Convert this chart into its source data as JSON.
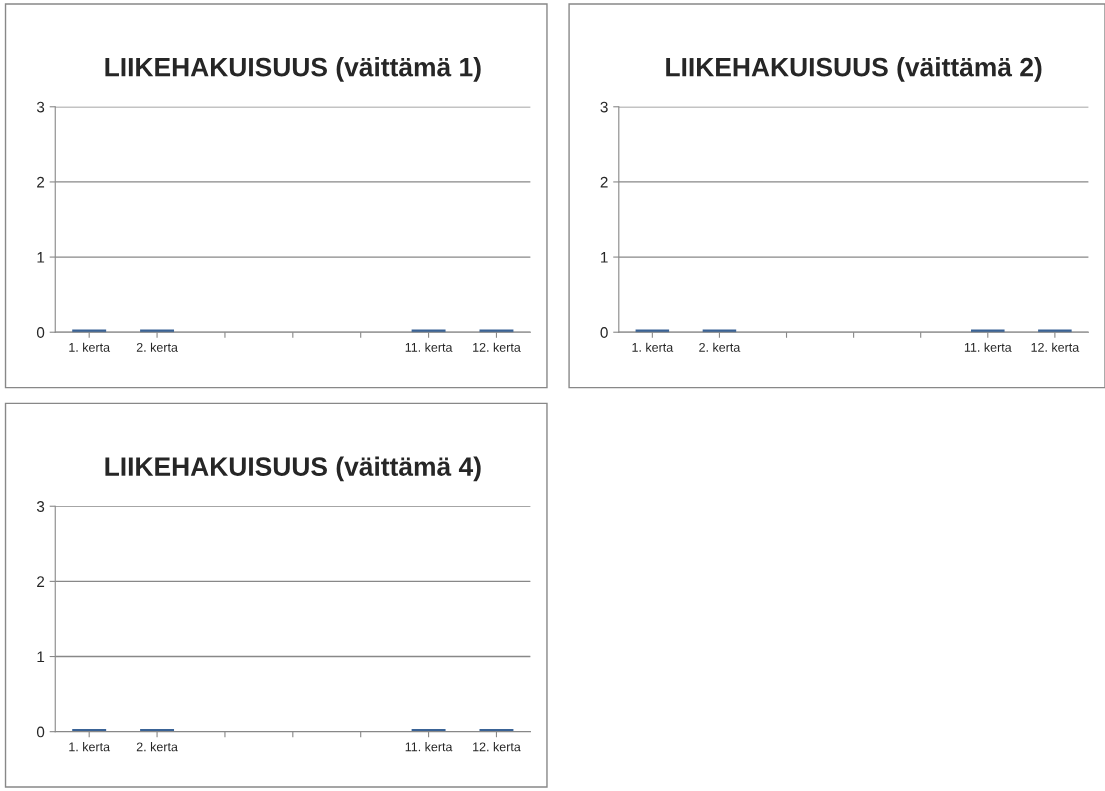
{
  "chart_data": [
    {
      "type": "bar",
      "title": "LIIKEHAKUISUUS (väittämä 1)",
      "categories": [
        "1. kerta",
        "2. kerta",
        null,
        null,
        null,
        "11. kerta",
        "12. kerta"
      ],
      "values": [
        0,
        0,
        null,
        null,
        null,
        0,
        0
      ],
      "color": "#3a6396",
      "ylim": [
        0,
        3
      ],
      "yticks": [
        0,
        1,
        2,
        3
      ],
      "grid": "y"
    },
    {
      "type": "bar",
      "title": "LIIKEHAKUISUUS (väittämä 2)",
      "categories": [
        "1. kerta",
        "2. kerta",
        null,
        null,
        null,
        "11. kerta",
        "12. kerta"
      ],
      "values": [
        0,
        0,
        null,
        null,
        null,
        0,
        0
      ],
      "color": "#3a6396",
      "ylim": [
        0,
        3
      ],
      "yticks": [
        0,
        1,
        2,
        3
      ],
      "grid": "y"
    },
    {
      "type": "bar",
      "title": "LIIKEHAKUISUUS (väittämä 4)",
      "categories": [
        "1. kerta",
        "2. kerta",
        null,
        null,
        null,
        "11. kerta",
        "12. kerta"
      ],
      "values": [
        0,
        0,
        null,
        null,
        null,
        0,
        0
      ],
      "color": "#3a6396",
      "ylim": [
        0,
        3
      ],
      "yticks": [
        0,
        1,
        2,
        3
      ],
      "grid": "y"
    }
  ]
}
